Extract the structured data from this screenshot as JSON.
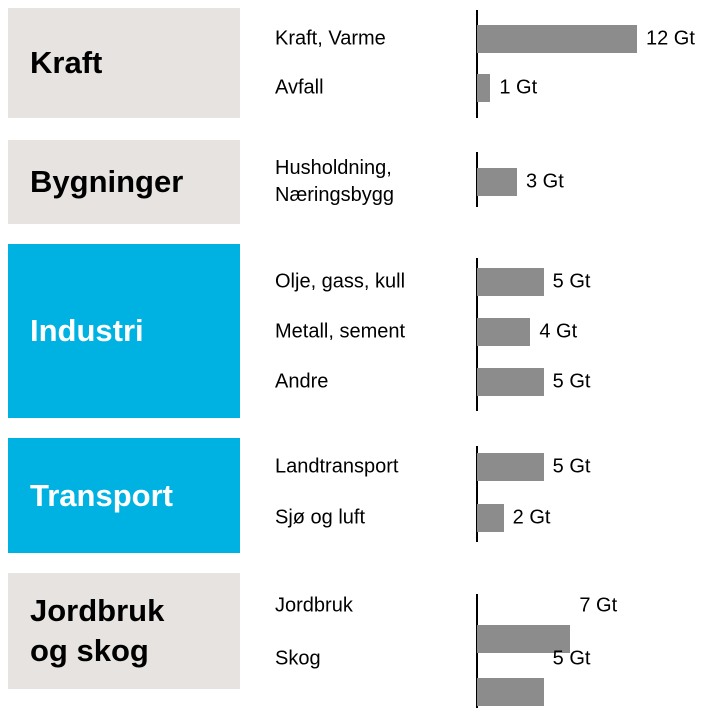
{
  "chart_data": {
    "type": "bar",
    "groups": [
      {
        "name": "Kraft",
        "color": "#e7e3e0",
        "text_color": "#000000",
        "categories": [
          "Kraft, Varme",
          "Avfall"
        ],
        "values": [
          12,
          1
        ],
        "value_labels": [
          "12 Gt",
          "1 Gt"
        ]
      },
      {
        "name": "Bygninger",
        "color": "#e7e3e0",
        "text_color": "#000000",
        "categories": [
          "Husholdning,\nNæringsbygg"
        ],
        "values": [
          3
        ],
        "value_labels": [
          "3 Gt"
        ]
      },
      {
        "name": "Industri",
        "color": "#00b2e2",
        "text_color": "#ffffff",
        "categories": [
          "Olje, gass, kull",
          "Metall, sement",
          "Andre"
        ],
        "values": [
          5,
          4,
          5
        ],
        "value_labels": [
          "5 Gt",
          "4 Gt",
          "5 Gt"
        ]
      },
      {
        "name": "Transport",
        "color": "#00b2e2",
        "text_color": "#ffffff",
        "categories": [
          "Landtransport",
          "Sjø og luft"
        ],
        "values": [
          5,
          2
        ],
        "value_labels": [
          "5 Gt",
          "2 Gt"
        ]
      },
      {
        "name": "Jordbruk\nog skog",
        "color": "#e7e3e0",
        "text_color": "#000000",
        "categories": [
          "Jordbruk",
          "Skog"
        ],
        "values": [
          7,
          5
        ],
        "value_labels": [
          "7 Gt",
          "5 Gt"
        ]
      }
    ],
    "bar_color": "#8c8c8c"
  }
}
